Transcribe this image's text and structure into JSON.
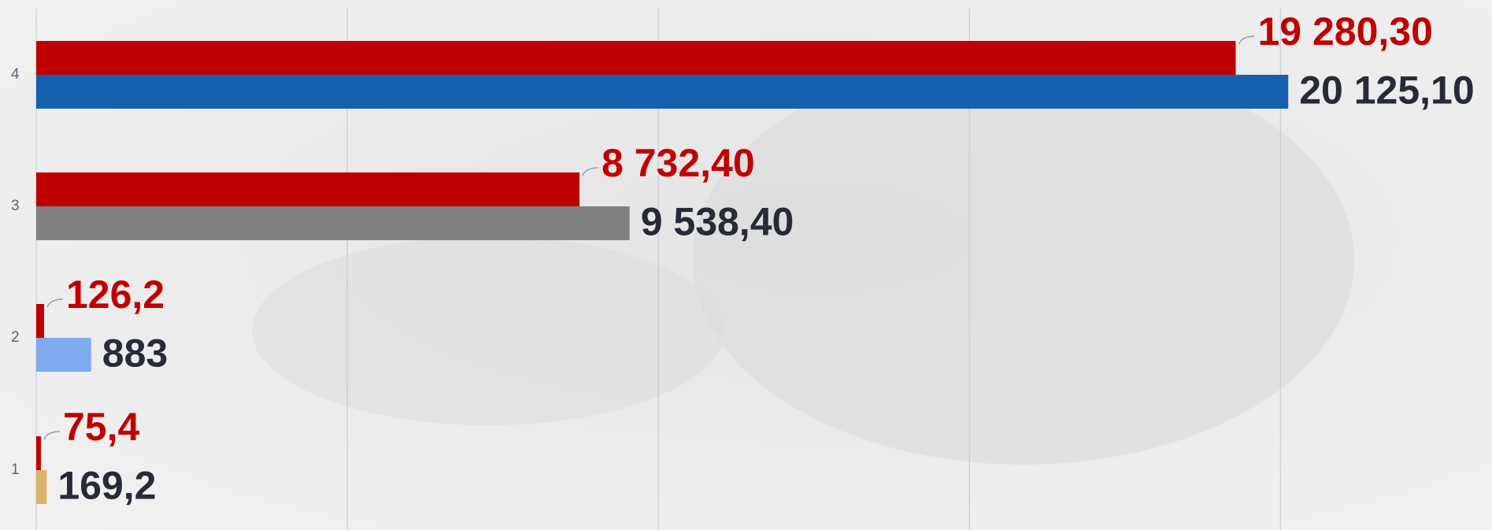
{
  "chart_data": {
    "type": "bar",
    "orientation": "horizontal",
    "categories": [
      "1",
      "2",
      "3",
      "4"
    ],
    "series": [
      {
        "color": "#c00000",
        "values": [
          75.4,
          126.2,
          8732.4,
          19280.3
        ],
        "value_labels": [
          "75,4",
          "126,2",
          "8 732,40",
          "19 280,30"
        ]
      },
      {
        "colors": [
          "#d9b36a",
          "#7faaf0",
          "#808080",
          "#1660b0"
        ],
        "values": [
          169.2,
          883,
          9538.4,
          20125.1
        ],
        "value_labels": [
          "169,2",
          "883",
          "9 538,40",
          "20 125,10"
        ]
      }
    ],
    "xlim": [
      0,
      23400
    ],
    "xticks": [
      0,
      5000,
      10000,
      15000,
      20000
    ],
    "grid": true
  }
}
